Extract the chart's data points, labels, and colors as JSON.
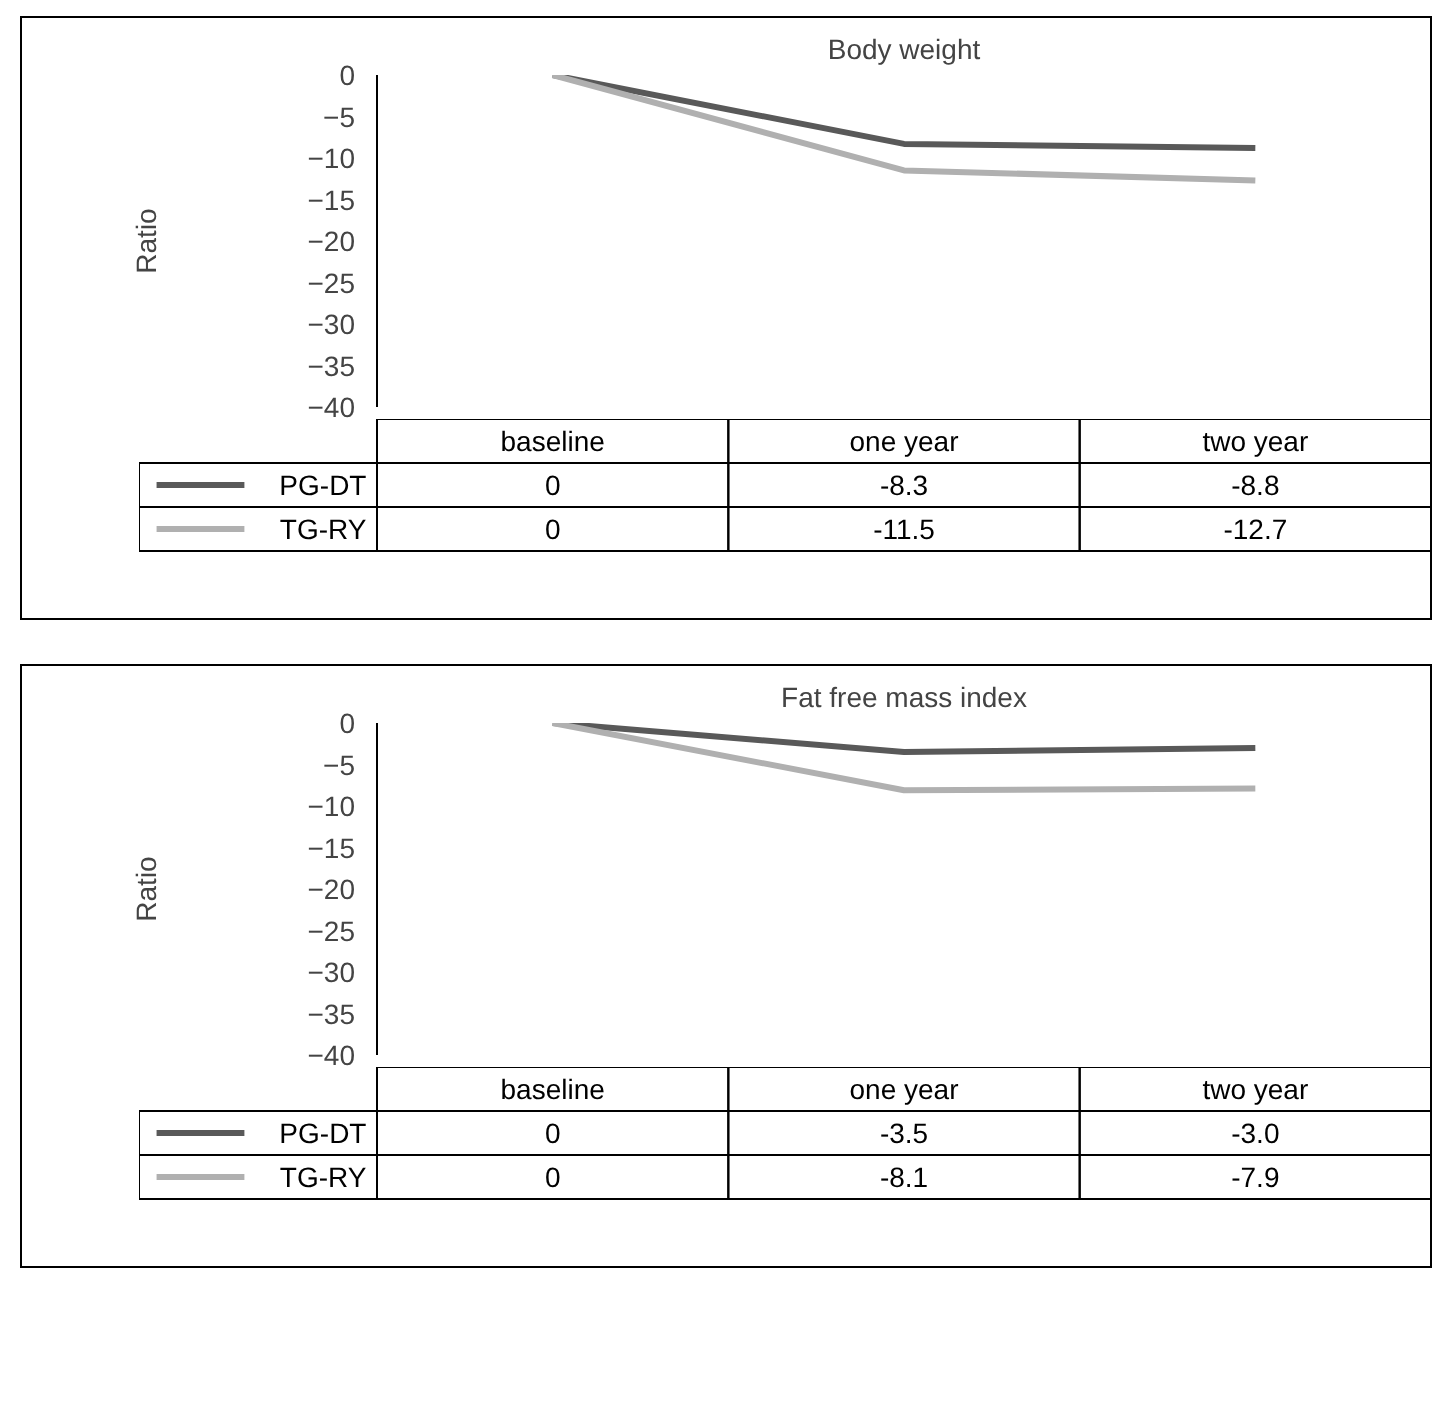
{
  "chart_data": [
    {
      "type": "line",
      "title": "Body weight",
      "ylabel": "Ratio",
      "categories": [
        "baseline",
        "one year",
        "two year"
      ],
      "ylim": [
        -40,
        0
      ],
      "yticks": [
        {
          "value": 0,
          "label": "0"
        },
        {
          "value": -5,
          "label": "−5"
        },
        {
          "value": -10,
          "label": "−10"
        },
        {
          "value": -15,
          "label": "−15"
        },
        {
          "value": -20,
          "label": "−20"
        },
        {
          "value": -25,
          "label": "−25"
        },
        {
          "value": -30,
          "label": "−30"
        },
        {
          "value": -35,
          "label": "−35"
        },
        {
          "value": -40,
          "label": "−40"
        }
      ],
      "legend": "bottom left",
      "grid": false,
      "series": [
        {
          "name": "PG-DT",
          "color": "#595959",
          "values": [
            0,
            -8.3,
            -8.8
          ],
          "value_labels": [
            "0",
            "-8.3",
            "-8.8"
          ]
        },
        {
          "name": "TG-RY",
          "color": "#b0b0b0",
          "values": [
            0,
            -11.5,
            -12.7
          ],
          "value_labels": [
            "0",
            "-11.5",
            "-12.7"
          ]
        }
      ]
    },
    {
      "type": "line",
      "title": "Fat free mass index",
      "ylabel": "Ratio",
      "categories": [
        "baseline",
        "one year",
        "two year"
      ],
      "ylim": [
        -40,
        0
      ],
      "yticks": [
        {
          "value": 0,
          "label": "0"
        },
        {
          "value": -5,
          "label": "−5"
        },
        {
          "value": -10,
          "label": "−10"
        },
        {
          "value": -15,
          "label": "−15"
        },
        {
          "value": -20,
          "label": "−20"
        },
        {
          "value": -25,
          "label": "−25"
        },
        {
          "value": -30,
          "label": "−30"
        },
        {
          "value": -35,
          "label": "−35"
        },
        {
          "value": -40,
          "label": "−40"
        }
      ],
      "legend": "bottom left",
      "grid": false,
      "series": [
        {
          "name": "PG-DT",
          "color": "#595959",
          "values": [
            0,
            -3.5,
            -3.0
          ],
          "value_labels": [
            "0",
            "-3.5",
            "-3.0"
          ]
        },
        {
          "name": "TG-RY",
          "color": "#b0b0b0",
          "values": [
            0,
            -8.1,
            -7.9
          ],
          "value_labels": [
            "0",
            "-8.1",
            "-7.9"
          ]
        }
      ]
    }
  ]
}
